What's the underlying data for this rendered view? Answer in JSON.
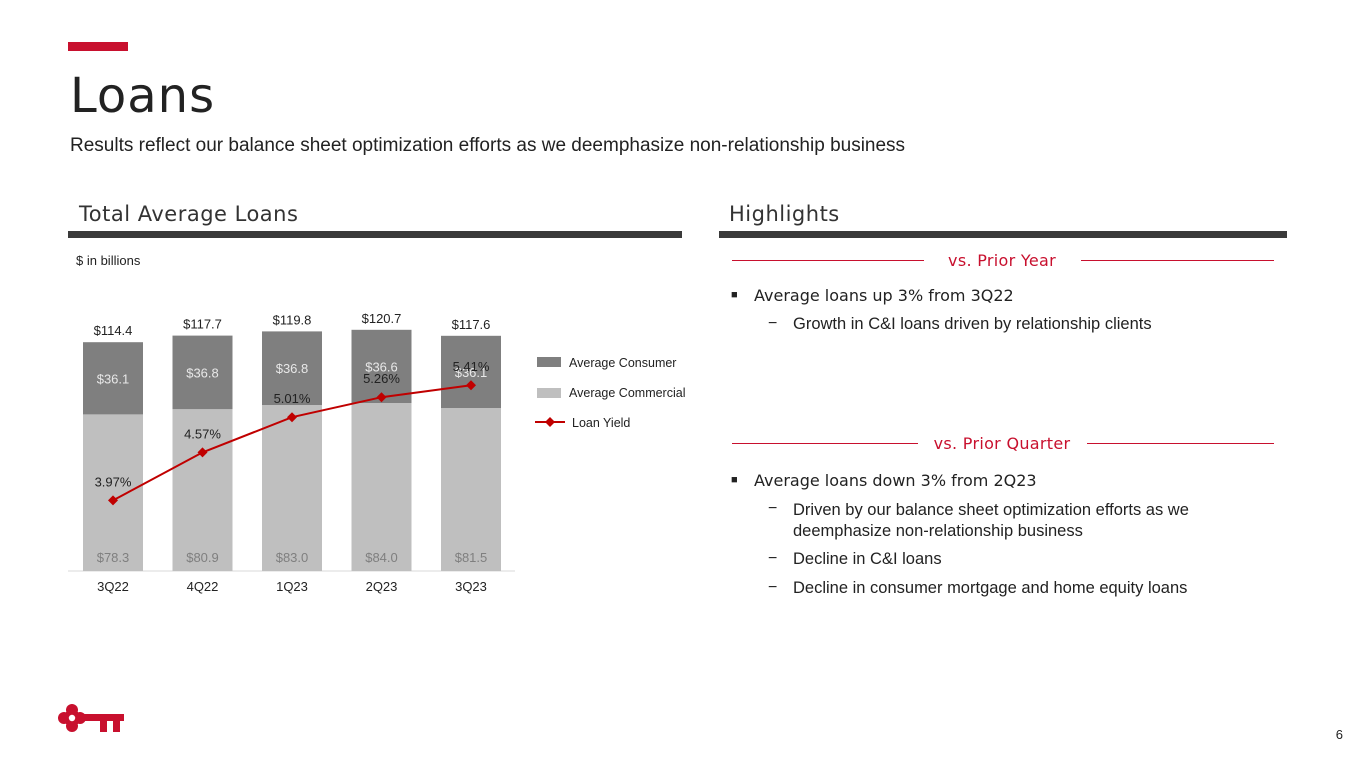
{
  "page": {
    "title": "Loans",
    "subtitle": "Results reflect our balance sheet optimization efforts as we deemphasize non-relationship business",
    "page_number": "6",
    "logo_icon": "key-logo-icon",
    "accent_color": "#c8102e"
  },
  "left_section": {
    "title": "Total Average Loans",
    "units": "$ in billions"
  },
  "highlights": {
    "title": "Highlights",
    "groups": [
      {
        "label": "vs. Prior Year",
        "bullet": "Average loans up 3% from 3Q22",
        "subs": [
          "Growth in C&I loans driven by relationship clients"
        ]
      },
      {
        "label": "vs. Prior Quarter",
        "bullet": "Average loans down 3% from 2Q23",
        "subs": [
          "Driven by our balance sheet optimization efforts as we deemphasize non-relationship business",
          "Decline in C&I loans",
          "Decline in consumer mortgage and home equity loans"
        ]
      }
    ]
  },
  "chart_data": {
    "type": "bar",
    "stacked": true,
    "title": "Total Average Loans",
    "ylabel": "$ in billions",
    "categories": [
      "3Q22",
      "4Q22",
      "1Q23",
      "2Q23",
      "3Q23"
    ],
    "series": [
      {
        "name": "Average Commercial",
        "values": [
          78.3,
          80.9,
          83.0,
          84.0,
          81.5
        ],
        "labels": [
          "$78.3",
          "$80.9",
          "$83.0",
          "$84.0",
          "$81.5"
        ],
        "color": "#bfbfbf"
      },
      {
        "name": "Average Consumer",
        "values": [
          36.1,
          36.8,
          36.8,
          36.6,
          36.1
        ],
        "labels": [
          "$36.1",
          "$36.8",
          "$36.8",
          "$36.6",
          "$36.1"
        ],
        "color": "#7f7f7f"
      }
    ],
    "totals": {
      "values": [
        114.4,
        117.7,
        119.8,
        120.7,
        117.6
      ],
      "labels": [
        "$114.4",
        "$117.7",
        "$119.8",
        "$120.7",
        "$117.6"
      ]
    },
    "line_series": {
      "name": "Loan Yield",
      "values": [
        3.97,
        4.57,
        5.01,
        5.26,
        5.41
      ],
      "labels": [
        "3.97%",
        "4.57%",
        "5.01%",
        "5.26%",
        "5.41%"
      ],
      "color": "#c00000"
    },
    "legend": [
      "Average Consumer",
      "Average Commercial",
      "Loan Yield"
    ],
    "legend_position": "right",
    "grid": false
  }
}
